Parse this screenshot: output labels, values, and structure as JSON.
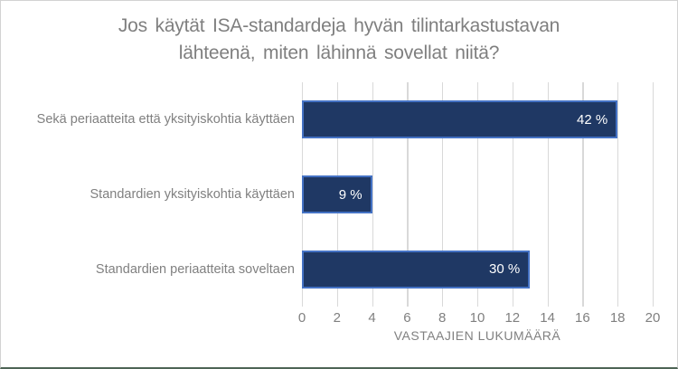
{
  "chart_data": {
    "type": "bar",
    "orientation": "horizontal",
    "title": "Jos käytät ISA-standardeja hyvän tilintarkastustavan lähteenä, miten lähinnä sovellat niitä?",
    "title_lines": [
      "Jos käytät ISA-standardeja hyvän tilintarkastustavan",
      "lähteenä, miten lähinnä sovellat niitä?"
    ],
    "categories": [
      "Sekä periaatteita että yksityiskohtia käyttäen",
      "Standardien yksityiskohtia käyttäen",
      "Standardien periaatteita soveltaen"
    ],
    "values": [
      18,
      4,
      13
    ],
    "data_labels": [
      "42 %",
      "9 %",
      "30 %"
    ],
    "xlabel": "VASTAAJIEN LUKUMÄÄRÄ",
    "xlim": [
      0,
      20
    ],
    "xticks": [
      0,
      2,
      4,
      6,
      8,
      10,
      12,
      14,
      16,
      18,
      20
    ],
    "grid": "vertical",
    "legend": "none",
    "colors": {
      "bar_fill": "#1f3864",
      "bar_border": "#4472c4",
      "gridline": "#d9d9d9",
      "text": "#808080",
      "title_text": "#7f7f7f",
      "data_label_text": "#ffffff"
    }
  }
}
